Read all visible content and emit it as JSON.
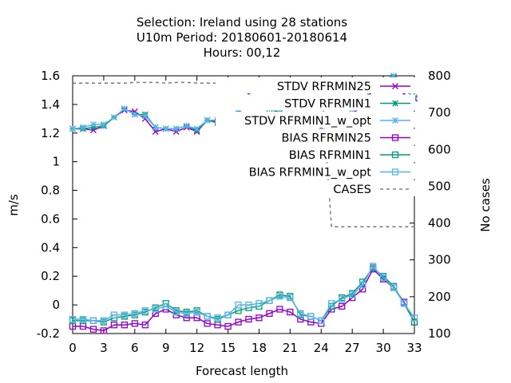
{
  "chart_data": {
    "type": "line",
    "title_lines": [
      "Selection: Ireland using    28 stations",
      "U10m   Period: 20180601-20180614",
      "Hours:  00,12"
    ],
    "xlabel": "Forecast length",
    "ylabel": "m/s",
    "y2label": "No cases",
    "xlim": [
      0,
      33
    ],
    "ylim": [
      -0.2,
      1.6
    ],
    "y2lim": [
      100,
      800
    ],
    "xticks": [
      0,
      3,
      6,
      9,
      12,
      15,
      18,
      21,
      24,
      27,
      30,
      33
    ],
    "yticks": [
      -0.2,
      0,
      0.2,
      0.4,
      0.6,
      0.8,
      1,
      1.2,
      1.4,
      1.6
    ],
    "ytick_labels": [
      "-0.2",
      "0",
      "0.2",
      "0.4",
      "0.6",
      "0.8",
      "1",
      "1.2",
      "1.4",
      "1.6"
    ],
    "y2ticks": [
      100,
      200,
      300,
      400,
      500,
      600,
      700,
      800
    ],
    "legend_position": "top-right",
    "x": [
      0,
      1,
      2,
      3,
      4,
      5,
      6,
      7,
      8,
      9,
      10,
      11,
      12,
      13,
      14,
      15,
      16,
      17,
      18,
      19,
      20,
      21,
      22,
      23,
      24,
      25,
      26,
      27,
      28,
      29,
      30,
      31,
      32,
      33
    ],
    "series": [
      {
        "name": "STDV RFRMIN25",
        "axis": "y1",
        "color": "#9400d3",
        "marker": "x",
        "values": [
          1.23,
          1.23,
          1.22,
          1.25,
          1.31,
          1.36,
          1.35,
          1.3,
          1.21,
          1.23,
          1.21,
          1.24,
          1.21,
          1.29,
          1.28,
          1.26,
          1.35,
          1.47,
          1.4,
          1.38,
          1.34,
          1.31,
          1.28,
          1.27,
          1.24,
          1.27,
          1.3,
          1.33,
          1.4,
          1.5,
          1.54,
          1.58,
          1.47,
          1.44
        ]
      },
      {
        "name": "STDV RFRMIN1",
        "axis": "y1",
        "color": "#009e73",
        "marker": "star",
        "values": [
          1.23,
          1.23,
          1.24,
          1.25,
          1.31,
          1.37,
          1.33,
          1.33,
          1.24,
          1.23,
          1.23,
          1.25,
          1.22,
          1.29,
          1.27,
          1.27,
          1.36,
          1.43,
          1.39,
          1.37,
          1.34,
          1.33,
          1.29,
          1.29,
          1.26,
          1.28,
          1.3,
          1.34,
          1.42,
          1.51,
          1.56,
          1.59,
          1.5,
          1.45
        ]
      },
      {
        "name": "STDV RFRMIN1_w_opt",
        "axis": "y1",
        "color": "#56b4e9",
        "marker": "asterisk",
        "values": [
          1.23,
          1.24,
          1.26,
          1.26,
          1.31,
          1.37,
          1.33,
          1.32,
          1.24,
          1.23,
          1.23,
          1.25,
          1.23,
          1.29,
          1.29,
          1.26,
          1.37,
          1.44,
          1.41,
          1.38,
          1.35,
          1.33,
          1.29,
          1.28,
          1.26,
          1.27,
          1.3,
          1.34,
          1.43,
          1.52,
          1.57,
          1.6,
          1.51,
          1.45
        ]
      },
      {
        "name": "BIAS RFRMIN25",
        "axis": "y1",
        "color": "#9400d3",
        "marker": "square",
        "values": [
          -0.15,
          -0.15,
          -0.17,
          -0.18,
          -0.14,
          -0.14,
          -0.13,
          -0.14,
          -0.06,
          -0.03,
          -0.07,
          -0.09,
          -0.09,
          -0.13,
          -0.14,
          -0.15,
          -0.12,
          -0.1,
          -0.09,
          -0.06,
          -0.03,
          -0.05,
          -0.1,
          -0.12,
          -0.13,
          -0.03,
          -0.01,
          0.05,
          0.11,
          0.25,
          0.18,
          0.12,
          0.02,
          -0.12
        ]
      },
      {
        "name": "BIAS RFRMIN1",
        "axis": "y1",
        "color": "#009e73",
        "marker": "square",
        "values": [
          -0.11,
          -0.11,
          -0.11,
          -0.12,
          -0.09,
          -0.08,
          -0.07,
          -0.05,
          -0.02,
          0.01,
          -0.04,
          -0.05,
          -0.04,
          -0.08,
          -0.1,
          -0.07,
          -0.04,
          -0.02,
          -0.01,
          0.03,
          0.07,
          0.06,
          -0.07,
          -0.08,
          -0.11,
          -0.01,
          0.05,
          0.08,
          0.16,
          0.26,
          0.2,
          0.13,
          0.01,
          -0.12
        ]
      },
      {
        "name": "BIAS RFRMIN1_w_opt",
        "axis": "y1",
        "color": "#56b4e9",
        "marker": "square",
        "values": [
          -0.1,
          -0.1,
          -0.11,
          -0.11,
          -0.07,
          -0.07,
          -0.06,
          -0.04,
          -0.03,
          -0.01,
          -0.05,
          -0.06,
          -0.05,
          -0.08,
          -0.09,
          -0.07,
          0.0,
          0.0,
          0.01,
          0.03,
          0.06,
          0.05,
          -0.06,
          -0.08,
          -0.11,
          0.01,
          0.04,
          0.07,
          0.14,
          0.27,
          0.19,
          0.12,
          0.01,
          -0.09
        ]
      },
      {
        "name": "CASES",
        "axis": "y2",
        "color": "#808080",
        "marker": "none",
        "dashed": true,
        "values": [
          780,
          780,
          780,
          780,
          780,
          780,
          782,
          782,
          782,
          780,
          782,
          782,
          780,
          780,
          780,
          780,
          780,
          780,
          780,
          780,
          780,
          780,
          780,
          780,
          780,
          390,
          390,
          390,
          390,
          390,
          390,
          390,
          390,
          390
        ]
      }
    ]
  }
}
